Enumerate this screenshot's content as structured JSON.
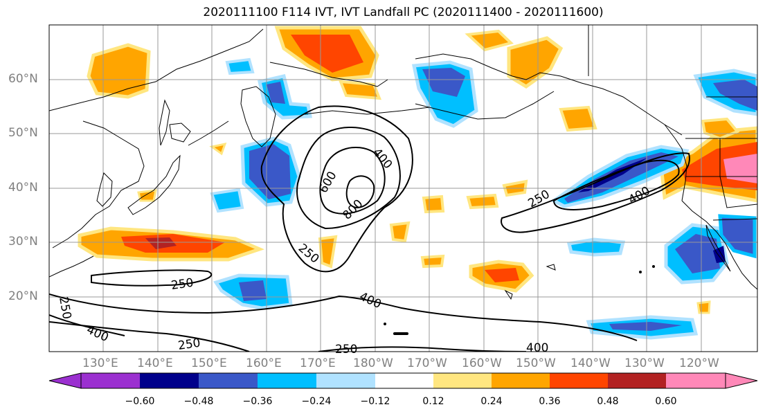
{
  "title": "2020111100 F114 IVT, IVT Landfall PC (2020111400 - 2020111600)",
  "latitude_labels": [
    "60°N",
    "50°N",
    "40°N",
    "30°N",
    "20°N"
  ],
  "longitude_labels": [
    "130°E",
    "140°E",
    "150°E",
    "160°E",
    "170°E",
    "180°W",
    "170°W",
    "160°W",
    "150°W",
    "140°W",
    "130°W",
    "120°W"
  ],
  "contour_labels": [
    "250",
    "250",
    "250",
    "250",
    "250",
    "250",
    "400",
    "400",
    "400",
    "400",
    "400",
    "600",
    "800"
  ],
  "colorbar": {
    "tick_labels": [
      "−0.60",
      "−0.48",
      "−0.36",
      "−0.24",
      "−0.12",
      "0.12",
      "0.24",
      "0.36",
      "0.48",
      "0.60"
    ],
    "colors": [
      "#9b30d0",
      "#00008b",
      "#3a58c8",
      "#00bfff",
      "#b0e2ff",
      "#ffffff",
      "#ffe680",
      "#ffa500",
      "#ff4500",
      "#b22222",
      "#ff88b8"
    ]
  }
}
